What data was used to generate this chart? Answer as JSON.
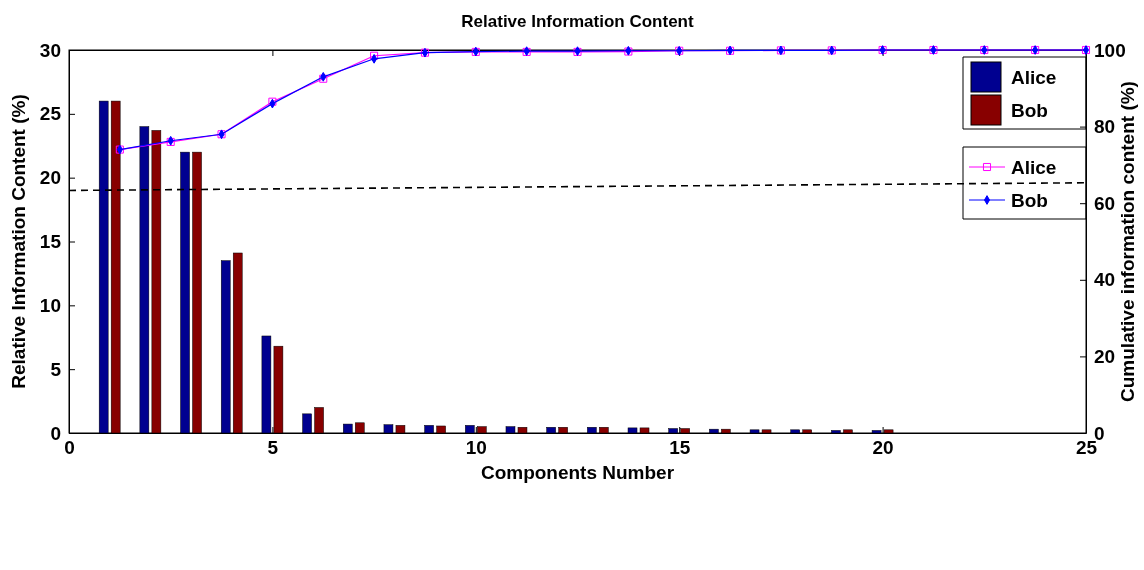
{
  "chart_data": {
    "type": "bar",
    "title": "Relative Information Content",
    "xlabel": "Components Number",
    "ylabel": "Relative Information Content (%)",
    "y2label": "Cumulative information content (%)",
    "xlim": [
      0,
      25
    ],
    "xticks": [
      0,
      5,
      10,
      15,
      20,
      25
    ],
    "ylim": [
      0,
      30
    ],
    "yticks": [
      0,
      5,
      10,
      15,
      20,
      25,
      30
    ],
    "y2lim": [
      0,
      100
    ],
    "y2ticks": [
      0,
      20,
      40,
      60,
      80,
      100
    ],
    "grid": false,
    "legend": "top right",
    "series": [
      {
        "name": "Alice",
        "color": "#000090",
        "x": [
          1,
          2,
          3,
          4,
          5,
          6,
          7,
          8,
          9,
          10,
          11,
          12,
          13,
          14,
          15,
          16,
          17,
          18,
          19,
          20
        ],
        "values": [
          26,
          24,
          22,
          13.5,
          7.6,
          1.5,
          0.7,
          0.65,
          0.6,
          0.6,
          0.5,
          0.45,
          0.45,
          0.4,
          0.35,
          0.3,
          0.25,
          0.25,
          0.2,
          0.2
        ]
      },
      {
        "name": "Bob",
        "color": "#880000",
        "x": [
          1,
          2,
          3,
          4,
          5,
          6,
          7,
          8,
          9,
          10,
          11,
          12,
          13,
          14,
          15,
          16,
          17,
          18,
          19,
          20
        ],
        "values": [
          26,
          23.7,
          22,
          14.1,
          6.8,
          2,
          0.8,
          0.6,
          0.55,
          0.5,
          0.45,
          0.45,
          0.45,
          0.4,
          0.35,
          0.3,
          0.25,
          0.25,
          0.25,
          0.25
        ]
      },
      {
        "name": "Alice",
        "type": "line",
        "axis": "y2",
        "color": "#ff00ff",
        "marker": "square",
        "line_style": "solid",
        "x": [
          1.25,
          2.5,
          3.75,
          5,
          6.25,
          7.5,
          8.75,
          10,
          11.25,
          12.5,
          13.75,
          15,
          16.25,
          17.5,
          18.75,
          20,
          21.25,
          22.5,
          23.75,
          25
        ],
        "values": [
          74,
          76,
          78,
          86.5,
          92.5,
          98.5,
          99.3,
          99.5,
          99.5,
          99.5,
          99.6,
          99.8,
          99.8,
          99.9,
          99.9,
          100,
          100,
          100,
          100,
          100
        ]
      },
      {
        "name": "Bob",
        "type": "line",
        "axis": "y2",
        "color": "#0000ff",
        "marker": "diamond",
        "line_style": "solid",
        "x": [
          1.25,
          2.5,
          3.75,
          5,
          6.25,
          7.5,
          8.75,
          10,
          11.25,
          12.5,
          13.75,
          15,
          16.25,
          17.5,
          18.75,
          20,
          21.25,
          22.5,
          23.75,
          25
        ],
        "values": [
          74,
          76.3,
          78,
          86,
          93,
          97.7,
          99.3,
          99.6,
          99.7,
          99.7,
          99.8,
          99.8,
          99.9,
          99.9,
          99.9,
          100,
          100,
          100,
          100,
          100
        ]
      },
      {
        "type": "line",
        "color": "#000000",
        "marker": "none",
        "line_style": "dashed",
        "x": [
          0,
          25
        ],
        "values": [
          19,
          19.6
        ]
      }
    ]
  }
}
